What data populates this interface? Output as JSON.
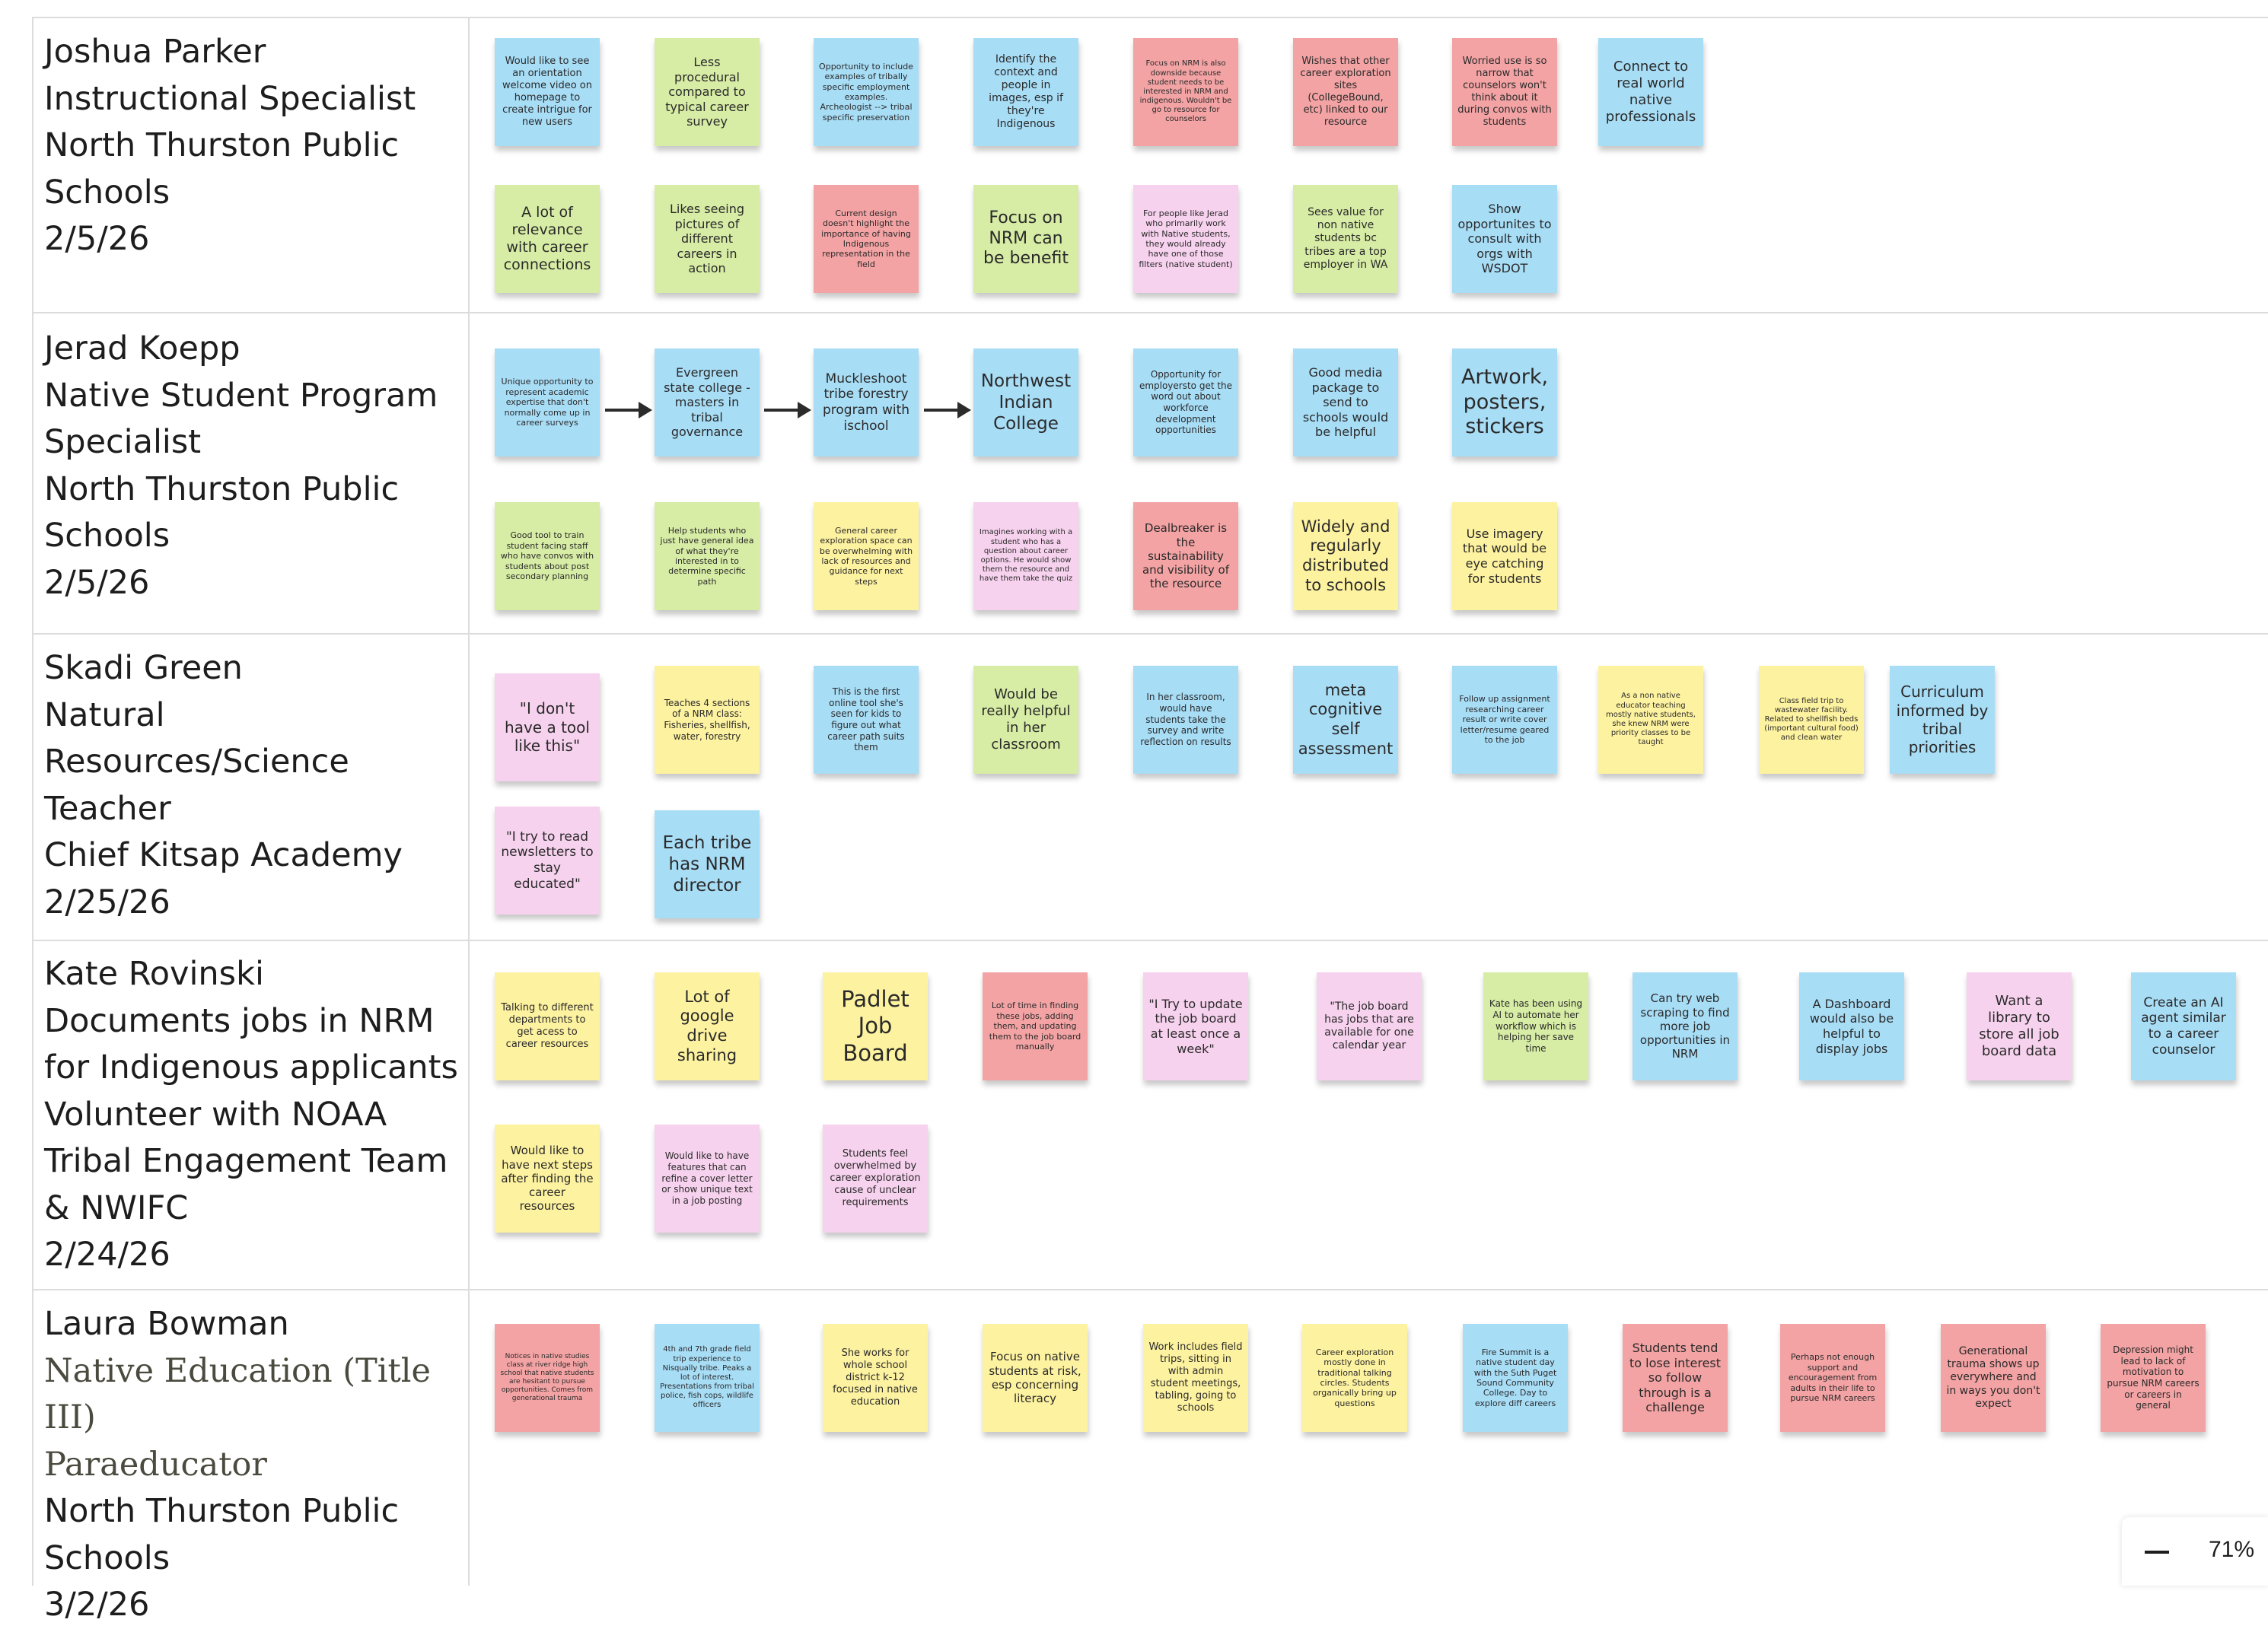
{
  "colors": {
    "blue": "#a8ddf6",
    "green": "#d7eca5",
    "red": "#f3a3a4",
    "pink": "#f7d2ee",
    "yellow": "#fdf2a0"
  },
  "zoom": {
    "level": "71%",
    "zoom_out_icon": "minus-icon"
  },
  "rows": [
    {
      "name": "joshua-parker",
      "label": [
        "Joshua Parker",
        "Instructional Specialist",
        "North Thurston Public",
        "Schools",
        "2/5/26"
      ],
      "notes": [
        {
          "text": "Would like to see an orientation welcome video on homepage to create intrigue for new users",
          "color": "blue",
          "size": 13
        },
        {
          "text": "Less procedural compared to typical career survey",
          "color": "green",
          "size": 16
        },
        {
          "text": "Opportunity to include examples of tribally specific employment examples. Archeologist --> tribal specific preservation",
          "color": "blue",
          "size": 11
        },
        {
          "text": "Identify the context and people in images, esp if they're Indigenous",
          "color": "blue",
          "size": 14
        },
        {
          "text": "Focus on NRM is also downside because student needs to be interested in NRM and indigenous. Wouldn't be go to resource for counselors",
          "color": "red",
          "size": 10
        },
        {
          "text": "Wishes that other career exploration sites (CollegeBound, etc) linked to our resource",
          "color": "red",
          "size": 13
        },
        {
          "text": "Worried use is so narrow that counselors won't think about it during convos with students",
          "color": "red",
          "size": 13
        },
        {
          "text": "Connect to real world native professionals",
          "color": "blue",
          "size": 18
        },
        {
          "text": "A lot of relevance with career connections",
          "color": "green",
          "size": 19
        },
        {
          "text": "Likes seeing pictures of different careers in action",
          "color": "green",
          "size": 16
        },
        {
          "text": "Current design doesn't highlight the importance of having Indigenous representation in the field",
          "color": "red",
          "size": 11
        },
        {
          "text": "Focus on NRM can be benefit",
          "color": "green",
          "size": 22
        },
        {
          "text": "For people like Jerad who primarily work with Native students, they would already have one of those filters (native student)",
          "color": "pink",
          "size": 11
        },
        {
          "text": "Sees value for non native students bc tribes are a top employer in WA",
          "color": "green",
          "size": 14
        },
        {
          "text": "Show opportunites to consult with orgs with WSDOT",
          "color": "blue",
          "size": 16
        }
      ]
    },
    {
      "name": "jerad-koepp",
      "label": [
        "Jerad Koepp",
        "Native Student Program",
        "Specialist",
        "North Thurston Public",
        "Schools",
        "2/5/26"
      ],
      "notes": [
        {
          "text": "Unique opportunity to represent academic expertise that don't normally come up in career surveys",
          "color": "blue",
          "size": 11
        },
        {
          "text": "Evergreen state college - masters in tribal governance",
          "color": "blue",
          "size": 16
        },
        {
          "text": "Muckleshoot tribe forestry program with ischool",
          "color": "blue",
          "size": 17
        },
        {
          "text": "Northwest Indian College",
          "color": "blue",
          "size": 23
        },
        {
          "text": "Opportunity for employersto get the word out about workforce development opportunities",
          "color": "blue",
          "size": 12
        },
        {
          "text": "Good media package to send to schools would be helpful",
          "color": "blue",
          "size": 16
        },
        {
          "text": "Artwork, posters, stickers",
          "color": "blue",
          "size": 27
        },
        {
          "text": "Good tool to train student facing staff who have convos with students about post secondary planning",
          "color": "green",
          "size": 11
        },
        {
          "text": "Help students who just have general idea of what they're interested in to determine specific path",
          "color": "green",
          "size": 11
        },
        {
          "text": "General career exploration space can be overwhelming with lack of resources and guidance for next steps",
          "color": "yellow",
          "size": 11
        },
        {
          "text": "Imagines working with a student who has a question about career options. He would show them the resource and have them take the quiz",
          "color": "pink",
          "size": 10
        },
        {
          "text": "Dealbreaker is the sustainability and visibility of the resource",
          "color": "red",
          "size": 15
        },
        {
          "text": "Widely and regularly distributed to schools",
          "color": "yellow",
          "size": 21
        },
        {
          "text": "Use imagery that would be eye catching for students",
          "color": "yellow",
          "size": 16
        }
      ]
    },
    {
      "name": "skadi-green",
      "label": [
        "Skadi Green",
        "Natural",
        "Resources/Science",
        "Teacher",
        "Chief Kitsap Academy",
        "2/25/26"
      ],
      "notes": [
        {
          "text": "\"I don't have a tool like this\"",
          "color": "pink",
          "size": 20
        },
        {
          "text": "Teaches 4 sections of a NRM class: Fisheries, shellfish, water, forestry",
          "color": "yellow",
          "size": 12
        },
        {
          "text": "This is the first online tool she's seen for kids to figure out what career path suits them",
          "color": "blue",
          "size": 12
        },
        {
          "text": "Would be really helpful in her classroom",
          "color": "green",
          "size": 18
        },
        {
          "text": "In her classroom, would have students take the survey and write reflection on results",
          "color": "blue",
          "size": 12
        },
        {
          "text": "meta cognitive self assessment",
          "color": "blue",
          "size": 21
        },
        {
          "text": "Follow up assignment researching career result or write cover letter/resume geared to the job",
          "color": "blue",
          "size": 11
        },
        {
          "text": "As a non native educator teaching mostly native students, she knew NRM were priority classes to be taught",
          "color": "yellow",
          "size": 10
        },
        {
          "text": "Class field trip to wastewater facility. Related to shellfish beds (important cultural food) and clean water",
          "color": "yellow",
          "size": 10
        },
        {
          "text": "Curriculum informed by tribal priorities",
          "color": "blue",
          "size": 20
        },
        {
          "text": "\"I try to read newsletters to stay educated\"",
          "color": "pink",
          "size": 17
        },
        {
          "text": "Each tribe has NRM director",
          "color": "blue",
          "size": 23
        }
      ]
    },
    {
      "name": "kate-rovinski",
      "label": [
        "Kate Rovinski",
        "Documents jobs in NRM",
        "for Indigenous applicants",
        "Volunteer with NOAA",
        "Tribal Engagement Team",
        "& NWIFC",
        "2/24/26"
      ],
      "notes": [
        {
          "text": "Talking to different departments to get acess to career resources",
          "color": "yellow",
          "size": 13
        },
        {
          "text": "Lot of google drive sharing",
          "color": "yellow",
          "size": 21
        },
        {
          "text": "Padlet Job Board",
          "color": "yellow",
          "size": 29
        },
        {
          "text": "Lot of time in finding these jobs, adding them, and updating them to the job board manually",
          "color": "red",
          "size": 11
        },
        {
          "text": "\"I Try to update the job board at least once a week\"",
          "color": "pink",
          "size": 16
        },
        {
          "text": "\"The job board has jobs that are available for one calendar year",
          "color": "pink",
          "size": 14
        },
        {
          "text": "Kate has been using AI to automate her workflow which is helping her save time",
          "color": "green",
          "size": 12
        },
        {
          "text": "Can try web scraping to find more job opportunities in NRM",
          "color": "blue",
          "size": 15
        },
        {
          "text": "A Dashboard would also be helpful to display jobs",
          "color": "blue",
          "size": 16
        },
        {
          "text": "Want a library to store all job board data",
          "color": "pink",
          "size": 18
        },
        {
          "text": "Create an AI agent similar to a career counselor",
          "color": "blue",
          "size": 17
        },
        {
          "text": "Would like to have next steps after finding the career resources",
          "color": "yellow",
          "size": 15
        },
        {
          "text": "Would like to have features that can refine a cover letter or show unique text in a job posting",
          "color": "pink",
          "size": 12
        },
        {
          "text": "Students feel overwhelmed by career exploration cause of unclear requirements",
          "color": "pink",
          "size": 13
        }
      ]
    },
    {
      "name": "laura-bowman",
      "label": [
        "Laura Bowman",
        "Native Education (Title III)",
        "Paraeducator",
        "North Thurston Public",
        "Schools",
        "3/2/26"
      ],
      "muted": [
        1,
        2
      ],
      "notes": [
        {
          "text": "Notices in native studies class at river ridge high school that native students are hesitant to pursue opportunities. Comes from generational trauma",
          "color": "red",
          "size": 9
        },
        {
          "text": "4th and 7th grade field trip experience to Nisqually tribe. Peaks a lot of interest. Presentations from tribal police, fish cops, wildlife officers",
          "color": "blue",
          "size": 10
        },
        {
          "text": "She works for whole school district k-12 focused in native education",
          "color": "yellow",
          "size": 13
        },
        {
          "text": "Focus on native students at risk, esp concerning literacy",
          "color": "yellow",
          "size": 15
        },
        {
          "text": "Work includes field trips, sitting in with admin student meetings, tabling, going to schools",
          "color": "yellow",
          "size": 13
        },
        {
          "text": "Career exploration mostly done in traditional talking circles. Students organically bring up questions",
          "color": "yellow",
          "size": 11
        },
        {
          "text": "Fire Summit is a native student day with the Suth Puget Sound Community College. Day to explore diff careers",
          "color": "blue",
          "size": 11
        },
        {
          "text": "Students tend to lose interest so follow through is a challenge",
          "color": "red",
          "size": 16
        },
        {
          "text": "Perhaps not enough support and encouragement from adults in their life to pursue NRM careers",
          "color": "red",
          "size": 11
        },
        {
          "text": "Generational trauma shows up everywhere and in ways you don't expect",
          "color": "red",
          "size": 14
        },
        {
          "text": "Depression might lead to lack of motivation to pursue NRM careers or careers in general",
          "color": "red",
          "size": 12
        }
      ]
    }
  ]
}
